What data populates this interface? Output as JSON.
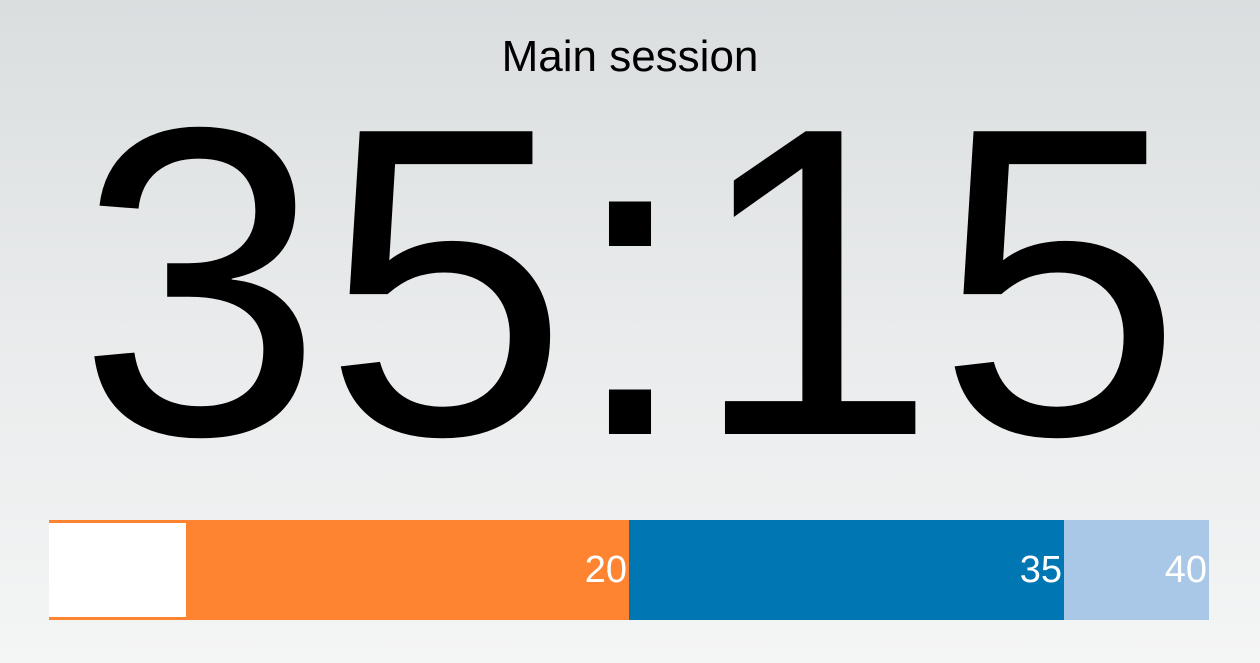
{
  "session": {
    "title": "Main session"
  },
  "timer": {
    "display": "35:15",
    "minutes": 35,
    "seconds": 15
  },
  "timeline": {
    "total_minutes": 40,
    "elapsed_fraction_of_first_segment": 0.237,
    "segments": [
      {
        "end_minute": 20,
        "label": "",
        "color": "#ff8431"
      },
      {
        "end_minute": 20,
        "label": "20",
        "color": "#ff8431"
      },
      {
        "end_minute": 35,
        "label": "35",
        "color": "#0077b3"
      },
      {
        "end_minute": 40,
        "label": "40",
        "color": "#a9c8e7"
      }
    ]
  },
  "colors": {
    "warning": "#ff8431",
    "main": "#0077b3",
    "final": "#a9c8e7",
    "elapsed": "#ffffff"
  }
}
